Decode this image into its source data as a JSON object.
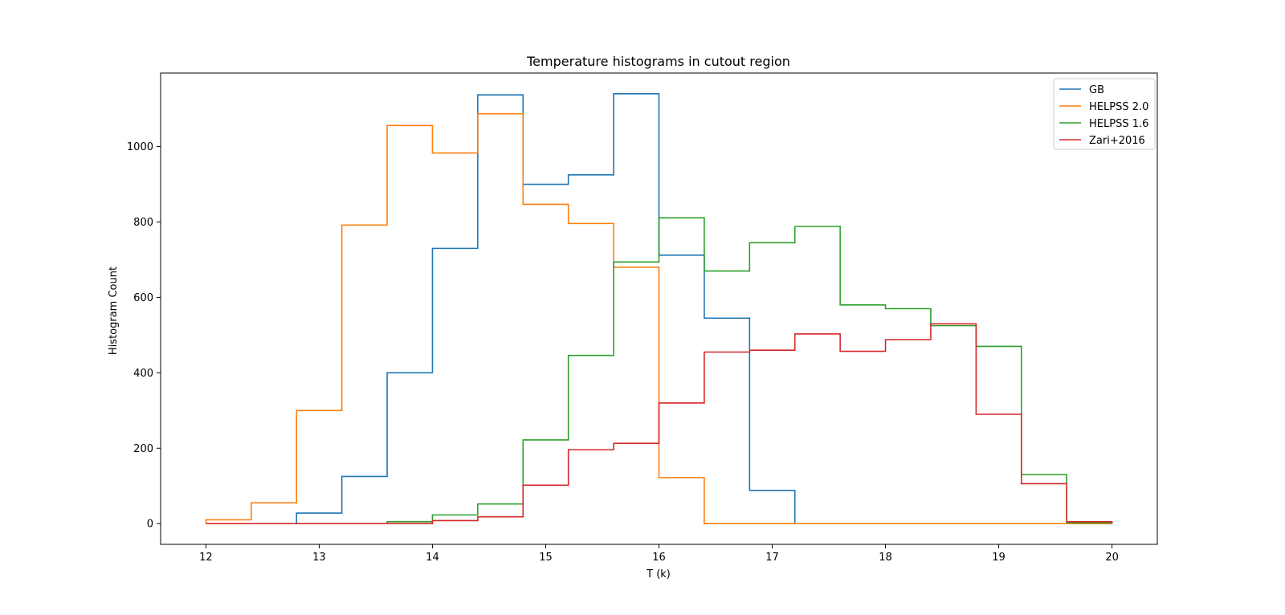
{
  "chart_data": {
    "type": "line",
    "subtype": "step histogram",
    "title": "Temperature histograms in cutout region",
    "xlabel": "T (k)",
    "ylabel": "Histogram Count",
    "xlim": [
      11.6,
      20.4
    ],
    "ylim": [
      -55,
      1195
    ],
    "xticks": [
      12,
      13,
      14,
      15,
      16,
      17,
      18,
      19,
      20
    ],
    "yticks": [
      0,
      200,
      400,
      600,
      800,
      1000
    ],
    "bin_width": 0.4,
    "grid": false,
    "legend_position": "top-right",
    "series": [
      {
        "name": "GB",
        "color": "#1f77b4",
        "bin_starts": [
          12.8,
          13.2,
          13.6,
          14.0,
          14.4,
          14.8,
          15.2,
          15.6,
          16.0,
          16.4,
          16.8
        ],
        "values": [
          28,
          125,
          400,
          730,
          1137,
          900,
          925,
          1140,
          712,
          545,
          88
        ]
      },
      {
        "name": "HELPSS 2.0",
        "color": "#ff7f0e",
        "bin_starts": [
          12.0,
          12.4,
          12.8,
          13.2,
          13.6,
          14.0,
          14.4,
          14.8,
          15.2,
          15.6,
          16.0,
          16.4,
          16.8,
          17.2,
          17.6,
          18.0,
          18.4,
          18.8,
          19.2,
          19.6
        ],
        "values": [
          10,
          55,
          300,
          792,
          1056,
          983,
          1087,
          847,
          796,
          680,
          122,
          0,
          0,
          0,
          0,
          0,
          0,
          0,
          0,
          0
        ]
      },
      {
        "name": "HELPSS 1.6",
        "color": "#2ca02c",
        "bin_starts": [
          13.6,
          14.0,
          14.4,
          14.8,
          15.2,
          15.6,
          16.0,
          16.4,
          16.8,
          17.2,
          17.6,
          18.0,
          18.4,
          18.8,
          19.2,
          19.6
        ],
        "values": [
          5,
          23,
          52,
          222,
          446,
          694,
          811,
          670,
          745,
          788,
          580,
          570,
          525,
          470,
          130,
          2
        ]
      },
      {
        "name": "Zari+2016",
        "color": "#d62728",
        "bin_starts": [
          12.0,
          12.4,
          12.8,
          13.2,
          13.6,
          14.0,
          14.4,
          14.8,
          15.2,
          15.6,
          16.0,
          16.4,
          16.8,
          17.2,
          17.6,
          18.0,
          18.4,
          18.8,
          19.2,
          19.6
        ],
        "values": [
          0,
          0,
          0,
          0,
          0,
          8,
          18,
          102,
          196,
          213,
          320,
          455,
          460,
          503,
          457,
          488,
          530,
          290,
          106,
          5
        ]
      }
    ]
  }
}
